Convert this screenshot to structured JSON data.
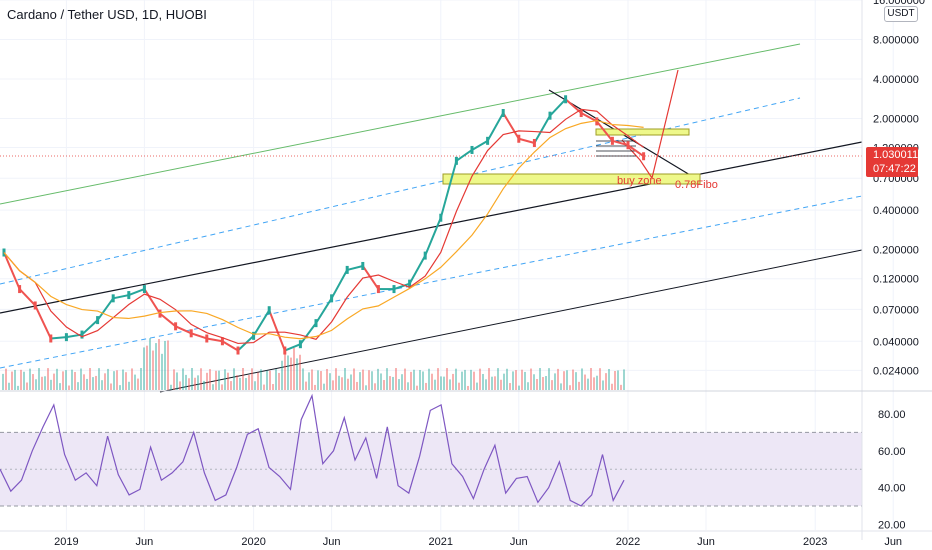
{
  "header": {
    "title": "Cardano / Tether USD, 1D, HUOBI",
    "currency": "USDT"
  },
  "price_tag": {
    "price": "1.030011",
    "countdown": "07:47:22",
    "color": "#e53935"
  },
  "annotations": {
    "buy_zone": "buy zone",
    "fibo": "0.78Fibo"
  },
  "colors": {
    "candle_up": "#26a69a",
    "candle_down": "#ef5350",
    "ma_red": "#e53935",
    "ma_orange": "#f9a825",
    "channel_green": "#66bb6a",
    "channel_blue": "#42a5f5",
    "trend_black": "#131722",
    "rsi": "#7e57c2",
    "rsi_band": "#ede7f6",
    "zone": "#eef88a"
  },
  "chart_data": [
    {
      "type": "line",
      "title": "Cardano / Tether USD, 1D, HUOBI",
      "y_scale": "log",
      "ylim": [
        0.017,
        16
      ],
      "y_ticks": [
        "16.000000",
        "8.000000",
        "4.000000",
        "2.000000",
        "1.200000",
        "0.700000",
        "0.400000",
        "0.200000",
        "0.120000",
        "0.070000",
        "0.040000",
        "0.024000"
      ],
      "x_ticks": [
        "2019",
        "Jun",
        "2020",
        "Jun",
        "2021",
        "Jun",
        "2022",
        "Jun",
        "2023",
        "Jun"
      ],
      "series": [
        {
          "x": [
            "2018-09",
            "2018-10",
            "2018-11",
            "2018-12",
            "2019-01",
            "2019-02",
            "2019-03",
            "2019-04",
            "2019-05",
            "2019-06",
            "2019-07",
            "2019-08",
            "2019-09",
            "2019-10",
            "2019-11",
            "2019-12",
            "2020-01",
            "2020-02",
            "2020-03",
            "2020-04",
            "2020-05",
            "2020-06",
            "2020-07",
            "2020-08",
            "2020-09",
            "2020-10",
            "2020-11",
            "2020-12",
            "2021-01",
            "2021-02",
            "2021-03",
            "2021-04",
            "2021-05",
            "2021-06",
            "2021-07",
            "2021-08",
            "2021-09",
            "2021-10",
            "2021-11",
            "2021-12",
            "2022-01",
            "2022-02"
          ],
          "values": [
            0.19,
            0.1,
            0.075,
            0.042,
            0.043,
            0.045,
            0.058,
            0.085,
            0.09,
            0.1,
            0.065,
            0.052,
            0.046,
            0.042,
            0.04,
            0.034,
            0.044,
            0.069,
            0.034,
            0.038,
            0.055,
            0.085,
            0.14,
            0.15,
            0.1,
            0.1,
            0.11,
            0.18,
            0.35,
            0.95,
            1.15,
            1.35,
            2.2,
            1.4,
            1.3,
            2.1,
            2.8,
            2.2,
            1.9,
            1.35,
            1.25,
            1.03
          ]
        }
      ],
      "annotations": [
        "buy zone",
        "0.78Fibo"
      ]
    },
    {
      "type": "line",
      "title": "",
      "ylim": [
        18,
        92
      ],
      "y_ticks": [
        "80.00",
        "60.00",
        "40.00",
        "20.00"
      ],
      "bands": [
        30,
        70
      ],
      "series": [
        {
          "values": [
            50,
            38,
            44,
            60,
            73,
            85,
            58,
            44,
            48,
            41,
            68,
            47,
            36,
            39,
            62,
            44,
            48,
            54,
            70,
            48,
            33,
            36,
            51,
            69,
            72,
            51,
            46,
            39,
            77,
            90,
            53,
            60,
            78,
            55,
            67,
            45,
            73,
            41,
            37,
            57,
            82,
            85,
            53,
            46,
            34,
            50,
            63,
            37,
            45,
            46,
            32,
            40,
            54,
            33,
            30,
            36,
            58,
            33,
            44
          ]
        }
      ]
    }
  ]
}
